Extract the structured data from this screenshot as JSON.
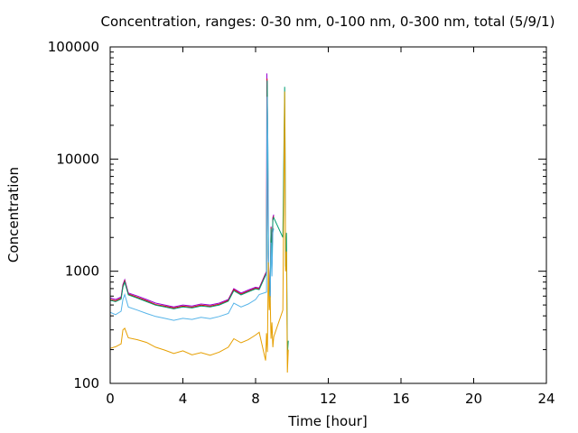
{
  "chart_data": {
    "type": "line",
    "title": "Concentration, ranges: 0-30 nm, 0-100 nm, 0-300 nm, total (5/9/1)",
    "xlabel": "Time [hour]",
    "ylabel": "Concentration",
    "xlim": [
      0,
      24
    ],
    "ylim": [
      100,
      100000
    ],
    "yscale": "log",
    "grid": false,
    "x_ticks": [
      0,
      4,
      8,
      12,
      16,
      20,
      24
    ],
    "x_tick_labels": [
      "0",
      "4",
      "8",
      "12",
      "16",
      "20",
      "24"
    ],
    "y_ticks": [
      100,
      1000,
      10000,
      100000
    ],
    "y_tick_labels": [
      "100",
      "1000",
      "10000",
      "100000"
    ],
    "series": [
      {
        "color": "#9400d3",
        "x": [
          0,
          0.3,
          0.6,
          0.7,
          0.8,
          1.0,
          1.5,
          2.0,
          2.5,
          3.0,
          3.5,
          4.0,
          4.5,
          5.0,
          5.5,
          6.0,
          6.5,
          6.8,
          7.2,
          7.6,
          8.0,
          8.2,
          8.6,
          8.62,
          8.65,
          8.7,
          8.75,
          8.8,
          8.85,
          8.9,
          8.95,
          9.0
        ],
        "y": [
          580,
          560,
          590,
          760,
          840,
          640,
          600,
          560,
          520,
          500,
          480,
          500,
          490,
          510,
          500,
          520,
          560,
          700,
          640,
          680,
          720,
          710,
          1000,
          58000,
          18000,
          1600,
          700,
          600,
          2500,
          1200,
          3000,
          3200
        ]
      },
      {
        "color": "#e00000",
        "x": [
          0,
          0.3,
          0.6,
          0.7,
          0.8,
          1.0,
          1.5,
          2.0,
          2.5,
          3.0,
          3.5,
          4.0,
          4.5,
          5.0,
          5.5,
          6.0,
          6.5,
          6.8,
          7.2,
          7.6,
          8.0,
          8.2,
          8.6,
          8.63,
          8.66,
          8.7,
          8.75,
          8.8,
          8.85,
          8.9,
          8.95,
          9.0
        ],
        "y": [
          560,
          545,
          575,
          740,
          820,
          625,
          585,
          545,
          505,
          488,
          470,
          488,
          478,
          498,
          488,
          508,
          548,
          685,
          625,
          665,
          705,
          695,
          980,
          52000,
          17000,
          1550,
          680,
          590,
          2450,
          1150,
          2900,
          3100
        ]
      },
      {
        "color": "#009e73",
        "x": [
          0,
          0.3,
          0.6,
          0.7,
          0.8,
          1.0,
          1.5,
          2.0,
          2.5,
          3.0,
          3.5,
          4.0,
          4.5,
          5.0,
          5.5,
          6.0,
          6.5,
          6.8,
          7.2,
          7.6,
          8.0,
          8.2,
          8.6,
          8.64,
          8.67,
          8.7,
          8.75,
          8.8,
          8.85,
          8.9,
          8.95,
          9.0,
          9.5,
          9.6,
          9.62,
          9.65,
          9.7,
          9.75,
          9.8
        ],
        "y": [
          550,
          535,
          565,
          720,
          800,
          615,
          575,
          535,
          498,
          480,
          462,
          480,
          470,
          490,
          480,
          500,
          540,
          670,
          615,
          655,
          695,
          685,
          960,
          50000,
          16000,
          1500,
          660,
          580,
          2400,
          1100,
          2850,
          3000,
          2000,
          44000,
          16000,
          1100,
          2200,
          180,
          240
        ]
      },
      {
        "color": "#56b4e9",
        "x": [
          0,
          0.3,
          0.6,
          0.7,
          0.8,
          1.0,
          1.5,
          2.0,
          2.5,
          3.0,
          3.5,
          4.0,
          4.5,
          5.0,
          5.5,
          6.0,
          6.5,
          6.8,
          7.2,
          7.6,
          8.0,
          8.2,
          8.6,
          8.64,
          8.68,
          8.72,
          8.76,
          8.8,
          8.85,
          8.9,
          8.95,
          9.0
        ],
        "y": [
          430,
          410,
          440,
          560,
          620,
          480,
          450,
          420,
          395,
          380,
          365,
          380,
          372,
          388,
          378,
          395,
          420,
          520,
          480,
          510,
          560,
          620,
          650,
          36000,
          12000,
          1100,
          520,
          500,
          1800,
          900,
          2200,
          2400
        ]
      },
      {
        "color": "#e69f00",
        "x": [
          0,
          0.3,
          0.6,
          0.7,
          0.8,
          1.0,
          1.5,
          2.0,
          2.5,
          3.0,
          3.5,
          4.0,
          4.5,
          5.0,
          5.5,
          6.0,
          6.5,
          6.8,
          7.2,
          7.6,
          8.0,
          8.2,
          8.55,
          8.6,
          8.65,
          8.7,
          8.75,
          8.8,
          8.85,
          8.9,
          8.95,
          9.0,
          9.5,
          9.6,
          9.62,
          9.65,
          9.7,
          9.75,
          9.8
        ],
        "y": [
          205,
          212,
          225,
          300,
          310,
          255,
          245,
          232,
          210,
          198,
          185,
          195,
          180,
          188,
          178,
          190,
          210,
          250,
          230,
          245,
          270,
          285,
          160,
          280,
          190,
          1200,
          450,
          600,
          250,
          350,
          210,
          260,
          450,
          40000,
          12000,
          1000,
          1500,
          125,
          200
        ]
      }
    ]
  }
}
